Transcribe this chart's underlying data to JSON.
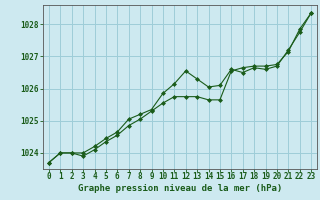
{
  "title": "Graphe pression niveau de la mer (hPa)",
  "background_color": "#cde9f0",
  "grid_color": "#9ecdd8",
  "line_color": "#1a5c1a",
  "hours": [
    0,
    1,
    2,
    3,
    4,
    5,
    6,
    7,
    8,
    9,
    10,
    11,
    12,
    13,
    14,
    15,
    16,
    17,
    18,
    19,
    20,
    21,
    22,
    23
  ],
  "series1": [
    1023.7,
    1024.0,
    1024.0,
    1023.9,
    1024.1,
    1024.35,
    1024.55,
    1024.85,
    1025.05,
    1025.3,
    1025.55,
    1025.75,
    1025.75,
    1025.75,
    1025.65,
    1025.65,
    1026.55,
    1026.65,
    1026.7,
    1026.7,
    1026.75,
    1027.15,
    1027.85,
    1028.35
  ],
  "series2": [
    1023.7,
    1024.0,
    1024.0,
    1024.0,
    1024.2,
    1024.45,
    1024.65,
    1025.05,
    1025.2,
    1025.35,
    1025.85,
    1026.15,
    1026.55,
    1026.3,
    1026.05,
    1026.1,
    1026.6,
    1026.5,
    1026.65,
    1026.6,
    1026.7,
    1027.2,
    1027.75,
    1028.35
  ],
  "ylim": [
    1023.5,
    1028.6
  ],
  "yticks": [
    1024,
    1025,
    1026,
    1027,
    1028
  ],
  "xlim": [
    -0.5,
    23.5
  ],
  "xticks": [
    0,
    1,
    2,
    3,
    4,
    5,
    6,
    7,
    8,
    9,
    10,
    11,
    12,
    13,
    14,
    15,
    16,
    17,
    18,
    19,
    20,
    21,
    22,
    23
  ],
  "title_fontsize": 6.5,
  "tick_fontsize": 5.5,
  "title_color": "#1a5c1a",
  "tick_color": "#1a5c1a",
  "axis_color": "#555555"
}
